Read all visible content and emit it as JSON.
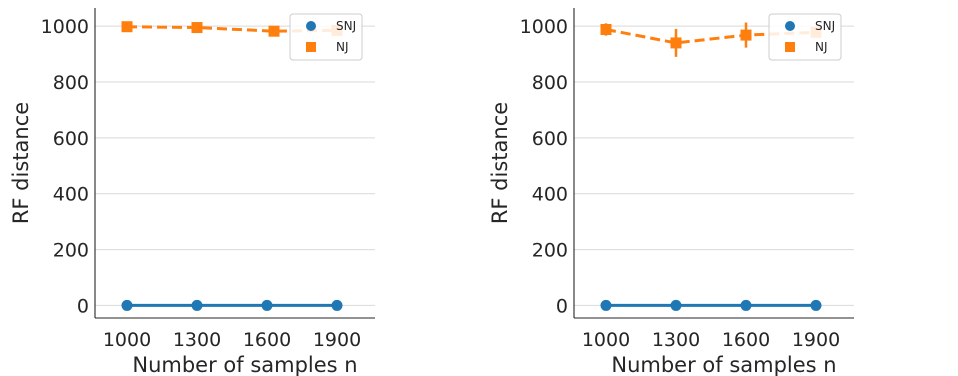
{
  "chart_data": [
    {
      "type": "line",
      "x": [
        1000,
        1300,
        1600,
        1900
      ],
      "xticks": [
        "1000",
        "1300",
        "1600",
        "1900"
      ],
      "yticks": [
        "0",
        "200",
        "400",
        "600",
        "800",
        "1000"
      ],
      "xlabel": "Number of samples n",
      "ylabel": "RF distance",
      "ylim": [
        -45,
        1065
      ],
      "grid": "horizontal",
      "legend_position": "top-right",
      "series": [
        {
          "name": "SNJ",
          "values": [
            0,
            0,
            0,
            0
          ],
          "errors": [
            0,
            0,
            0,
            0
          ],
          "color": "#1f77b4",
          "marker": "circle",
          "linestyle": "solid"
        },
        {
          "name": "NJ",
          "values": [
            998,
            995,
            982,
            985
          ],
          "errors": [
            5,
            6,
            14,
            6
          ],
          "color": "#ff7f0e",
          "marker": "square",
          "linestyle": "dashed"
        }
      ]
    },
    {
      "type": "line",
      "x": [
        1000,
        1300,
        1600,
        1900
      ],
      "xticks": [
        "1000",
        "1300",
        "1600",
        "1900"
      ],
      "yticks": [
        "0",
        "200",
        "400",
        "600",
        "800",
        "1000"
      ],
      "xlabel": "Number of samples n",
      "ylabel": "RF distance",
      "ylim": [
        -45,
        1065
      ],
      "grid": "horizontal",
      "legend_position": "top-right",
      "series": [
        {
          "name": "SNJ",
          "values": [
            0,
            0,
            0,
            0
          ],
          "errors": [
            0,
            0,
            0,
            0
          ],
          "color": "#1f77b4",
          "marker": "circle",
          "linestyle": "solid"
        },
        {
          "name": "NJ",
          "values": [
            988,
            940,
            968,
            978
          ],
          "errors": [
            22,
            50,
            45,
            10
          ],
          "color": "#ff7f0e",
          "marker": "square",
          "linestyle": "dashed"
        }
      ]
    }
  ]
}
